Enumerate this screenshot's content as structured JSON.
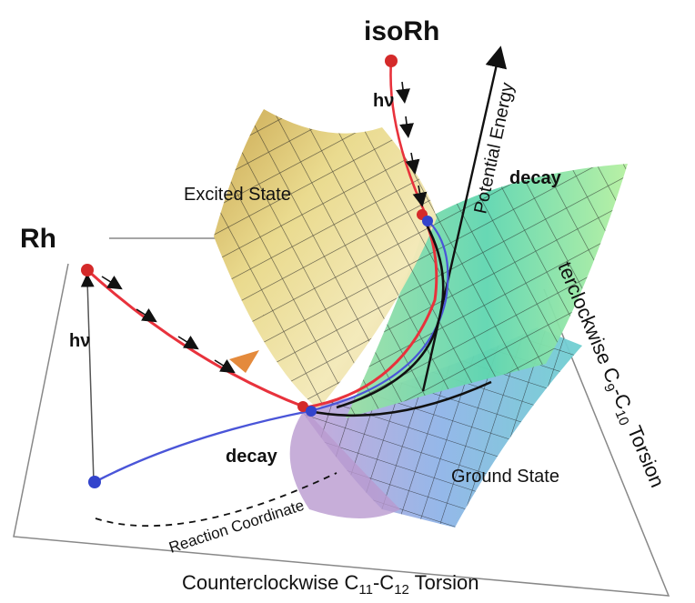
{
  "labels": {
    "rh": "Rh",
    "iso_rh": "isoRh",
    "excited_state": "Excited State",
    "ground_state": "Ground State",
    "potential_energy": "Potential Energy",
    "decay_upper": "decay",
    "decay_lower": "decay",
    "hv_left": "hν",
    "hv_top": "hν",
    "reaction_coordinate": "Reaction Coordinate",
    "torsion_c11_c12_prefix": "Counterclockwise C",
    "torsion_c11_c12_sub1": "11",
    "torsion_c11_c12_mid": "-C",
    "torsion_c11_c12_sub2": "12",
    "torsion_c11_c12_suffix": " Torsion",
    "torsion_c9_c10_prefix": "terclockwise C",
    "torsion_c9_c10_sub1": "9",
    "torsion_c9_c10_mid": "-C",
    "torsion_c9_c10_sub2": "10",
    "torsion_c9_c10_suffix": " Torsion"
  },
  "colors": {
    "excited_path": "#e8323c",
    "ground_path": "#4a55d8",
    "state_point_red": "#d42a2a",
    "state_point_blue": "#3344cc",
    "frame": "#888888",
    "axis": "#111111"
  }
}
